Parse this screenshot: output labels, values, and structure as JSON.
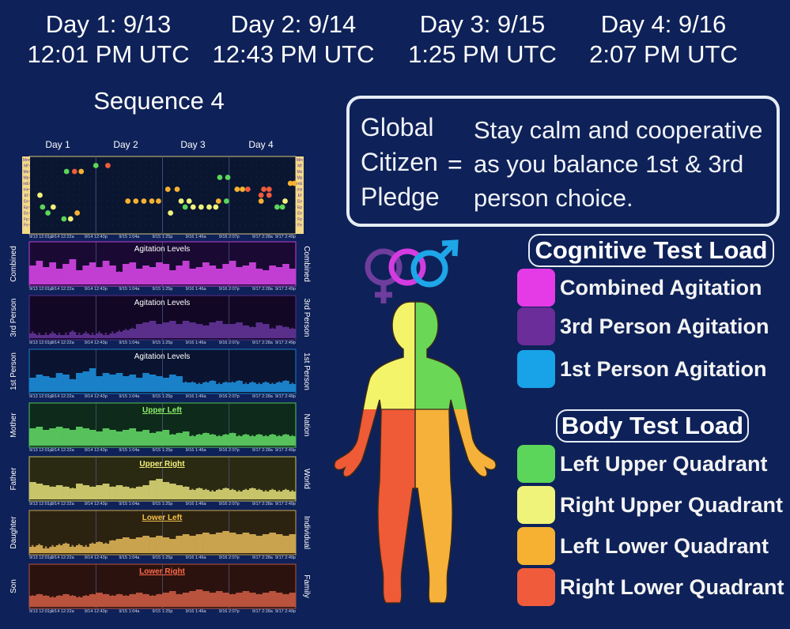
{
  "days": [
    {
      "day": "Day 1:  9/13",
      "time": "12:01 PM UTC"
    },
    {
      "day": "Day 2:  9/14",
      "time": "12:43 PM UTC"
    },
    {
      "day": "Day 3:  9/15",
      "time": "1:25 PM UTC"
    },
    {
      "day": "Day 4:  9/16",
      "time": "2:07 PM UTC"
    }
  ],
  "sequence_title": "Sequence 4",
  "pledge": {
    "lines": [
      "Global",
      "Citizen",
      "Pledge"
    ],
    "equals": "=",
    "text": "Stay calm and cooperative as you balance 1st & 3rd person choice."
  },
  "cognitive_legend": {
    "title": "Cognitive Test Load",
    "items": [
      {
        "label": "Combined Agitation",
        "color": "#e43be6"
      },
      {
        "label": "3rd Person Agitation",
        "color": "#6a2d99"
      },
      {
        "label": "1st Person Agitation",
        "color": "#18a2e8"
      }
    ]
  },
  "body_legend": {
    "title": "Body Test Load",
    "items": [
      {
        "label": "Left Upper Quadrant",
        "color": "#5bd65a"
      },
      {
        "label": "Right Upper Quadrant",
        "color": "#f0f37a"
      },
      {
        "label": "Left Lower Quadrant",
        "color": "#f6b132"
      },
      {
        "label": "Right Lower Quadrant",
        "color": "#f05b3c"
      }
    ]
  },
  "chart_data": [
    {
      "type": "scatter",
      "day_labels": [
        "Day 1",
        "Day 2",
        "Day 3",
        "Day 4"
      ],
      "row_labels": [
        "Mm",
        "Mf",
        "Me",
        "Mp",
        "mE",
        "me",
        "Ef",
        "Ee",
        "Ep",
        "Ee",
        "Fp",
        "Fe"
      ],
      "x_ticks": [
        "9/13 12:01p",
        "9/14 12:22a",
        "9/14 12:43p",
        "9/15 1:04a",
        "9/15 1:25p",
        "9/16 1:46a",
        "9/16 2:07p",
        "9/17 2:28a",
        "9/17 2:49p"
      ],
      "points": [
        {
          "x": 0.04,
          "row": 6,
          "color": "#f0f37a"
        },
        {
          "x": 0.05,
          "row": 8,
          "color": "#5bd65a"
        },
        {
          "x": 0.07,
          "row": 9,
          "color": "#5bd65a"
        },
        {
          "x": 0.09,
          "row": 8,
          "color": "#f0f37a"
        },
        {
          "x": 0.14,
          "row": 2,
          "color": "#5bd65a"
        },
        {
          "x": 0.17,
          "row": 2,
          "color": "#f05b3c"
        },
        {
          "x": 0.195,
          "row": 2,
          "color": "#f6b132"
        },
        {
          "x": 0.13,
          "row": 10,
          "color": "#5bd65a"
        },
        {
          "x": 0.155,
          "row": 10,
          "color": "#f0f37a"
        },
        {
          "x": 0.18,
          "row": 9,
          "color": "#f6b132"
        },
        {
          "x": 0.25,
          "row": 1,
          "color": "#5bd65a"
        },
        {
          "x": 0.295,
          "row": 1,
          "color": "#f05b3c"
        },
        {
          "x": 0.37,
          "row": 7,
          "color": "#f6b132"
        },
        {
          "x": 0.4,
          "row": 7,
          "color": "#f6b132"
        },
        {
          "x": 0.43,
          "row": 7,
          "color": "#f6b132"
        },
        {
          "x": 0.46,
          "row": 7,
          "color": "#f6b132"
        },
        {
          "x": 0.485,
          "row": 7,
          "color": "#f6b132"
        },
        {
          "x": 0.52,
          "row": 5,
          "color": "#f6b132"
        },
        {
          "x": 0.555,
          "row": 5,
          "color": "#f6b132"
        },
        {
          "x": 0.53,
          "row": 9,
          "color": "#f0f37a"
        },
        {
          "x": 0.57,
          "row": 7,
          "color": "#f0f37a"
        },
        {
          "x": 0.6,
          "row": 7,
          "color": "#f0f37a"
        },
        {
          "x": 0.585,
          "row": 8,
          "color": "#5bd65a"
        },
        {
          "x": 0.615,
          "row": 8,
          "color": "#f0f37a"
        },
        {
          "x": 0.645,
          "row": 8,
          "color": "#f0f37a"
        },
        {
          "x": 0.675,
          "row": 8,
          "color": "#f0f37a"
        },
        {
          "x": 0.7,
          "row": 8,
          "color": "#f0f37a"
        },
        {
          "x": 0.71,
          "row": 7,
          "color": "#f6b132"
        },
        {
          "x": 0.74,
          "row": 7,
          "color": "#5bd65a"
        },
        {
          "x": 0.715,
          "row": 3,
          "color": "#5bd65a"
        },
        {
          "x": 0.745,
          "row": 3,
          "color": "#5bd65a"
        },
        {
          "x": 0.82,
          "row": 5,
          "color": "#f05b3c"
        },
        {
          "x": 0.78,
          "row": 5,
          "color": "#f6b132"
        },
        {
          "x": 0.8,
          "row": 5,
          "color": "#f6b132"
        },
        {
          "x": 0.87,
          "row": 6,
          "color": "#f05b3c"
        },
        {
          "x": 0.9,
          "row": 6,
          "color": "#f05b3c"
        },
        {
          "x": 0.87,
          "row": 7,
          "color": "#f6b132"
        },
        {
          "x": 0.9,
          "row": 5,
          "color": "#f05b3c"
        },
        {
          "x": 0.93,
          "row": 8,
          "color": "#5bd65a"
        },
        {
          "x": 0.95,
          "row": 8,
          "color": "#5bd65a"
        },
        {
          "x": 0.96,
          "row": 7,
          "color": "#f0f37a"
        },
        {
          "x": 0.98,
          "row": 4,
          "color": "#f6b132"
        },
        {
          "x": 0.995,
          "row": 4,
          "color": "#f6b132"
        },
        {
          "x": 0.88,
          "row": 5,
          "color": "#f05b3c"
        }
      ]
    },
    {
      "type": "bar",
      "title": "Agitation Levels",
      "left_label": "Combined",
      "right_label": "Combined",
      "color": "#c23ed3",
      "bg": "#1a0a33",
      "title_color": "#ffffff",
      "levels": [
        0.6,
        0.75,
        0.55,
        0.7,
        0.5,
        0.65,
        0.8,
        0.45,
        0.6,
        0.7,
        0.55,
        0.75,
        0.6,
        0.4,
        0.65,
        0.7,
        0.5,
        0.6,
        0.55,
        0.7,
        0.65,
        0.45,
        0.6,
        0.75,
        0.5,
        0.55,
        0.7,
        0.6,
        0.5,
        0.65,
        0.75,
        0.55,
        0.6,
        0.7,
        0.5,
        0.45,
        0.6,
        0.55,
        0.65,
        0.5
      ]
    },
    {
      "type": "bar",
      "title": "Agitation Levels",
      "left_label": "3rd Person",
      "right_label": "3rd Person",
      "color": "#5a2f8c",
      "bg": "#120826",
      "title_color": "#ffffff",
      "levels": [
        0.15,
        0.1,
        0.1,
        0.15,
        0.1,
        0.1,
        0.2,
        0.1,
        0.15,
        0.1,
        0.15,
        0.1,
        0.15,
        0.2,
        0.25,
        0.3,
        0.45,
        0.5,
        0.55,
        0.45,
        0.5,
        0.55,
        0.45,
        0.55,
        0.5,
        0.45,
        0.4,
        0.5,
        0.55,
        0.45,
        0.45,
        0.5,
        0.4,
        0.35,
        0.5,
        0.45,
        0.3,
        0.4,
        0.35,
        0.3
      ]
    },
    {
      "type": "bar",
      "title": "Agitation Levels",
      "left_label": "1st Person",
      "right_label": "1st Person",
      "color": "#1a80c8",
      "bg": "#0a1430",
      "title_color": "#ffffff",
      "levels": [
        0.45,
        0.55,
        0.5,
        0.45,
        0.6,
        0.55,
        0.4,
        0.6,
        0.65,
        0.75,
        0.5,
        0.6,
        0.55,
        0.6,
        0.5,
        0.55,
        0.45,
        0.6,
        0.55,
        0.5,
        0.45,
        0.55,
        0.5,
        0.3,
        0.3,
        0.25,
        0.3,
        0.35,
        0.25,
        0.3,
        0.3,
        0.35,
        0.25,
        0.3,
        0.25,
        0.3,
        0.25,
        0.3,
        0.35,
        0.25
      ]
    },
    {
      "type": "bar",
      "title": "Upper Left",
      "left_label": "Mother",
      "right_label": "Nation",
      "color": "#57c25b",
      "bg": "#0d2a1a",
      "title_color": "#8ef06a",
      "levels": [
        0.55,
        0.6,
        0.5,
        0.55,
        0.6,
        0.55,
        0.5,
        0.6,
        0.55,
        0.5,
        0.45,
        0.55,
        0.5,
        0.45,
        0.5,
        0.55,
        0.45,
        0.5,
        0.4,
        0.45,
        0.5,
        0.35,
        0.4,
        0.45,
        0.3,
        0.35,
        0.4,
        0.35,
        0.3,
        0.35,
        0.4,
        0.3,
        0.35,
        0.3,
        0.35,
        0.3,
        0.35,
        0.3,
        0.35,
        0.3
      ]
    },
    {
      "type": "bar",
      "title": "Upper Right",
      "left_label": "Father",
      "right_label": "World",
      "color": "#c7c46a",
      "bg": "#2a2a12",
      "title_color": "#f4f27a",
      "levels": [
        0.55,
        0.5,
        0.45,
        0.4,
        0.45,
        0.4,
        0.35,
        0.5,
        0.45,
        0.4,
        0.45,
        0.5,
        0.4,
        0.45,
        0.4,
        0.35,
        0.4,
        0.45,
        0.6,
        0.65,
        0.55,
        0.5,
        0.45,
        0.4,
        0.3,
        0.35,
        0.3,
        0.25,
        0.3,
        0.35,
        0.3,
        0.25,
        0.3,
        0.35,
        0.3,
        0.25,
        0.3,
        0.25,
        0.3,
        0.25
      ]
    },
    {
      "type": "bar",
      "title": "Lower Left",
      "left_label": "Daughter",
      "right_label": "Individual",
      "color": "#c9a34e",
      "bg": "#2c2210",
      "title_color": "#f6c24a",
      "levels": [
        0.2,
        0.25,
        0.15,
        0.2,
        0.25,
        0.3,
        0.2,
        0.25,
        0.2,
        0.3,
        0.35,
        0.3,
        0.4,
        0.45,
        0.5,
        0.45,
        0.5,
        0.55,
        0.5,
        0.55,
        0.5,
        0.45,
        0.55,
        0.6,
        0.55,
        0.6,
        0.65,
        0.6,
        0.65,
        0.7,
        0.65,
        0.6,
        0.65,
        0.6,
        0.55,
        0.6,
        0.65,
        0.6,
        0.55,
        0.6
      ]
    },
    {
      "type": "bar",
      "title": "Lower Right",
      "left_label": "Son",
      "right_label": "Family",
      "color": "#b9533e",
      "bg": "#2c120e",
      "title_color": "#ff6a4a",
      "levels": [
        0.35,
        0.4,
        0.35,
        0.3,
        0.35,
        0.4,
        0.35,
        0.3,
        0.35,
        0.4,
        0.45,
        0.4,
        0.35,
        0.4,
        0.35,
        0.4,
        0.45,
        0.4,
        0.35,
        0.4,
        0.45,
        0.5,
        0.4,
        0.45,
        0.5,
        0.55,
        0.5,
        0.45,
        0.5,
        0.45,
        0.4,
        0.45,
        0.5,
        0.45,
        0.4,
        0.45,
        0.5,
        0.45,
        0.4,
        0.45
      ]
    }
  ]
}
